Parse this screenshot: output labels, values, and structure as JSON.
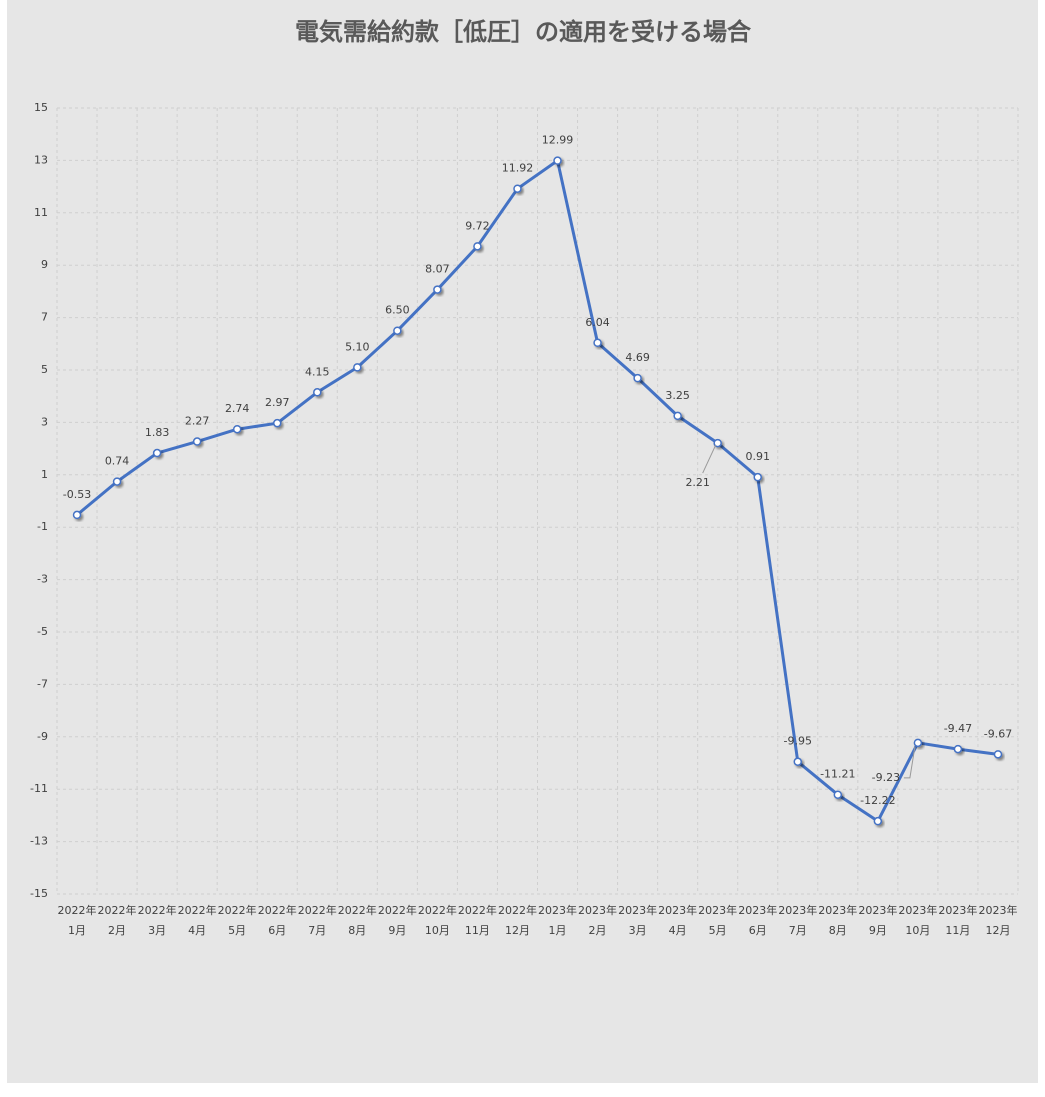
{
  "chart_data": {
    "type": "line",
    "title": "電気需給約款［低圧］の適用を受ける場合",
    "categories": [
      "2022年\n1月",
      "2022年\n2月",
      "2022年\n3月",
      "2022年\n4月",
      "2022年\n5月",
      "2022年\n6月",
      "2022年\n7月",
      "2022年\n8月",
      "2022年\n9月",
      "2022年\n10月",
      "2022年\n11月",
      "2022年\n12月",
      "2023年\n1月",
      "2023年\n2月",
      "2023年\n3月",
      "2023年\n4月",
      "2023年\n5月",
      "2023年\n6月",
      "2023年\n7月",
      "2023年\n8月",
      "2023年\n9月",
      "2023年\n10月",
      "2023年\n11月",
      "2023年\n12月"
    ],
    "values": [
      -0.53,
      0.74,
      1.83,
      2.27,
      2.74,
      2.97,
      4.15,
      5.1,
      6.5,
      8.07,
      9.72,
      11.92,
      12.99,
      6.04,
      4.69,
      3.25,
      2.21,
      0.91,
      -9.95,
      -11.21,
      -12.22,
      -9.23,
      -9.47,
      -9.67
    ],
    "value_labels": [
      "-0.53",
      "0.74",
      "1.83",
      "2.27",
      "2.74",
      "2.97",
      "4.15",
      "5.10",
      "6.50",
      "8.07",
      "9.72",
      "11.92",
      "12.99",
      "6.04",
      "4.69",
      "3.25",
      "2.21",
      "0.91",
      "-9.95",
      "-11.21",
      "-12.22",
      "-9.23",
      "-9.47",
      "-9.67"
    ],
    "color": "#4472c4",
    "ylim": [
      -15,
      15
    ],
    "yticks": [
      -15,
      -13,
      -11,
      -9,
      -7,
      -5,
      -3,
      -1,
      1,
      3,
      5,
      7,
      9,
      11,
      13,
      15
    ],
    "grid": true
  }
}
